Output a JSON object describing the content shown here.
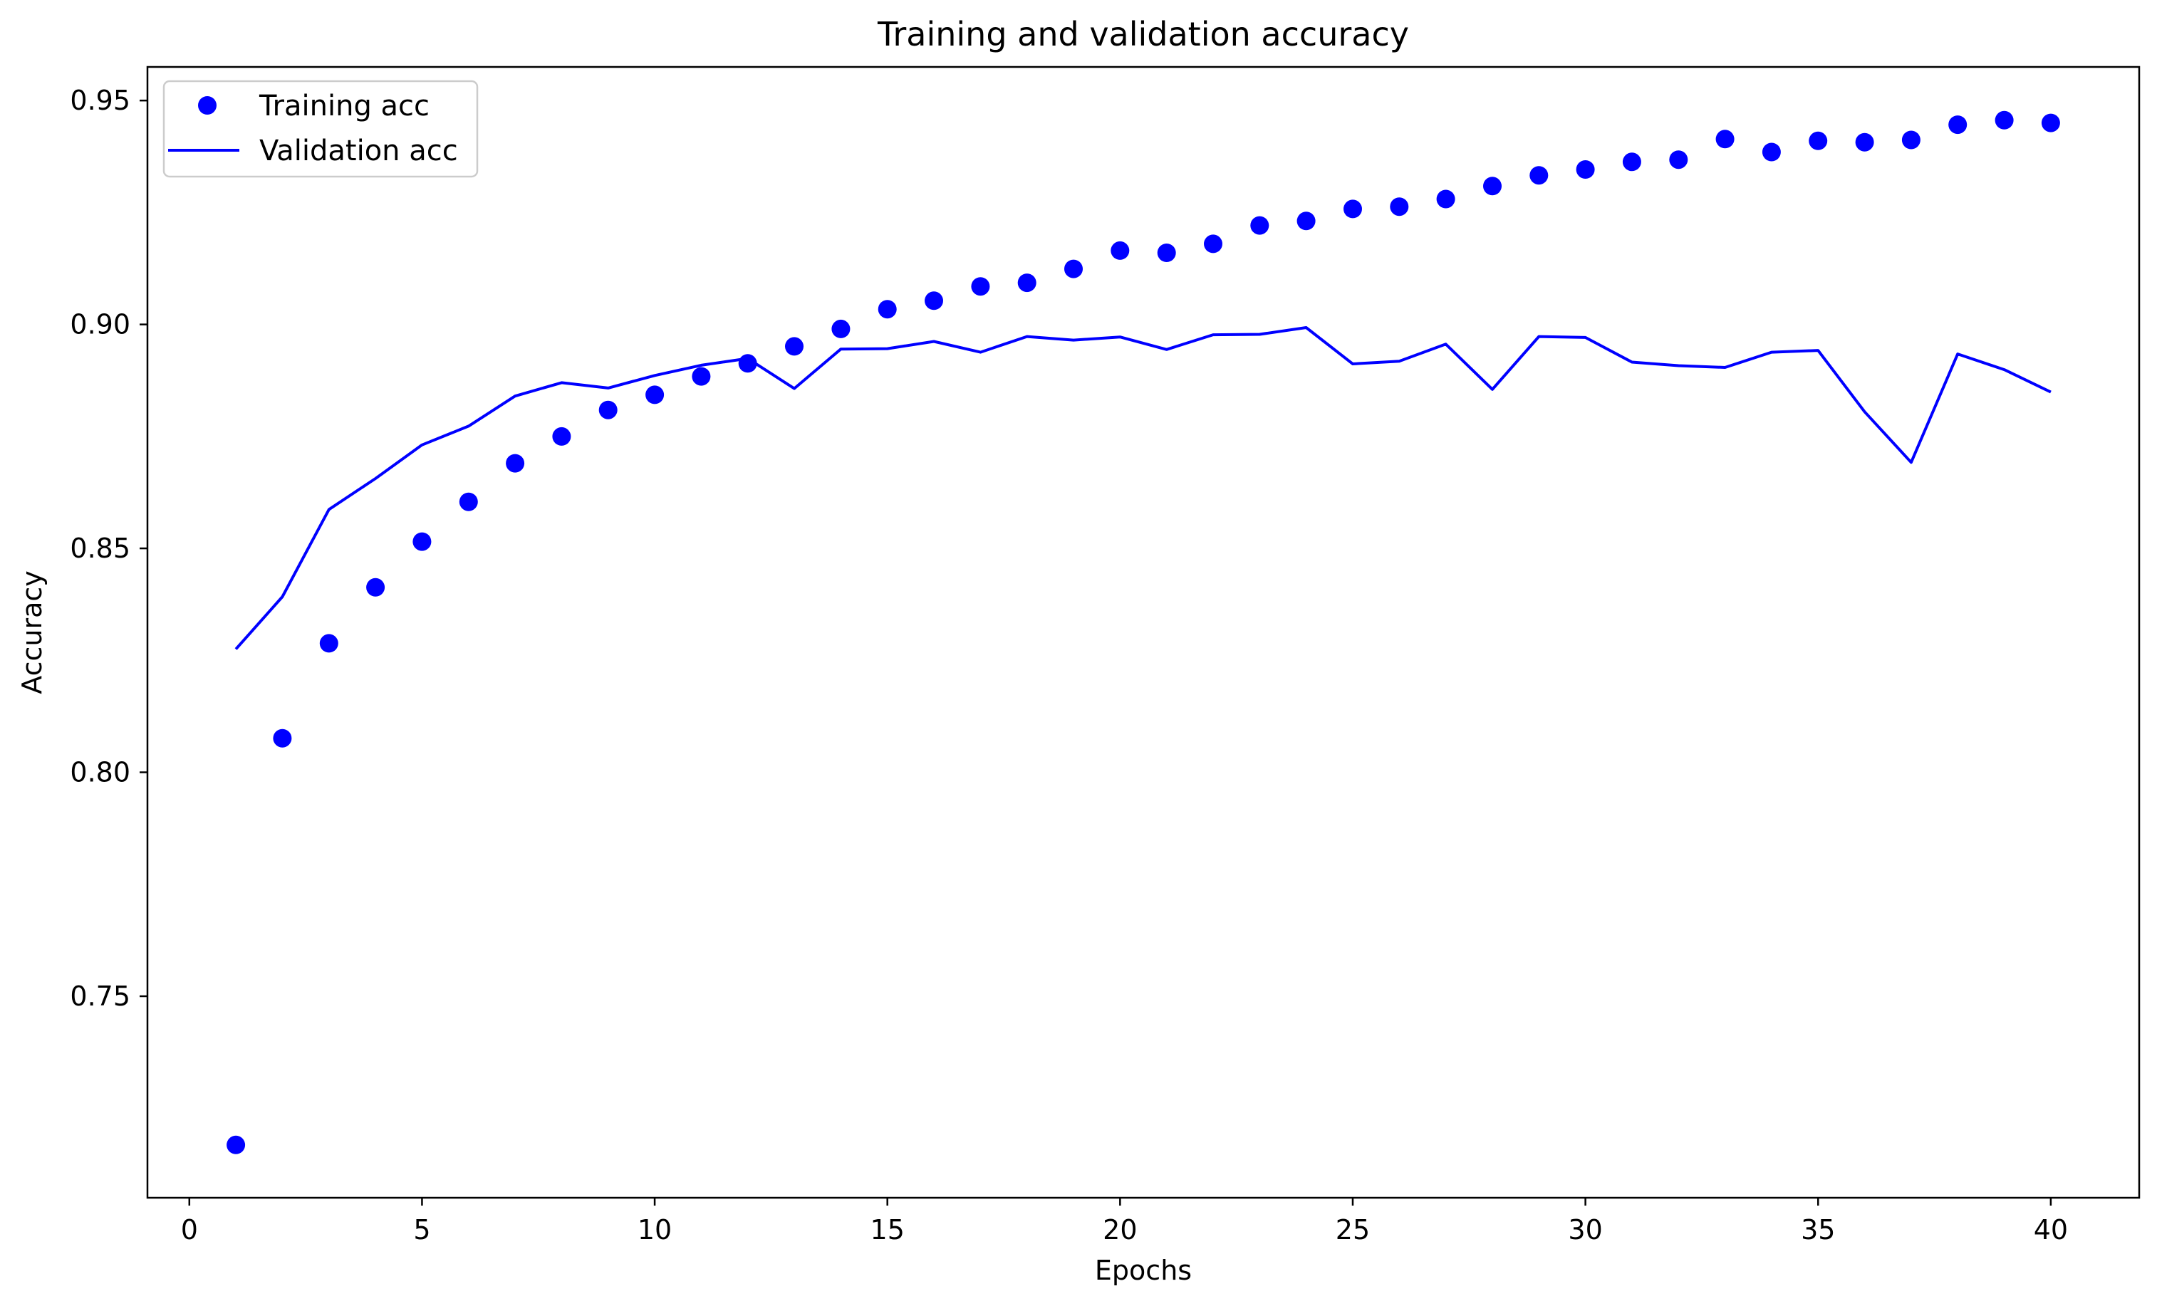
{
  "chart_data": {
    "type": "line",
    "title": "Training and validation accuracy",
    "xlabel": "Epochs",
    "ylabel": "Accuracy",
    "xlim": [
      -0.9,
      41.9
    ],
    "ylim": [
      0.705,
      0.9575
    ],
    "xticks": [
      0,
      5,
      10,
      15,
      20,
      25,
      30,
      35,
      40
    ],
    "yticks": [
      0.75,
      0.8,
      0.85,
      0.9,
      0.95
    ],
    "xtick_labels": [
      "0",
      "5",
      "10",
      "15",
      "20",
      "25",
      "30",
      "35",
      "40"
    ],
    "ytick_labels": [
      "0.75",
      "0.80",
      "0.85",
      "0.90",
      "0.95"
    ],
    "grid": false,
    "legend_position": "upper-left",
    "x": [
      1,
      2,
      3,
      4,
      5,
      6,
      7,
      8,
      9,
      10,
      11,
      12,
      13,
      14,
      15,
      16,
      17,
      18,
      19,
      20,
      21,
      22,
      23,
      24,
      25,
      26,
      27,
      28,
      29,
      30,
      31,
      32,
      33,
      34,
      35,
      36,
      37,
      38,
      39,
      40
    ],
    "series": [
      {
        "name": "Training acc",
        "style": "dots",
        "color": "#0000ff",
        "values": [
          0.7168,
          0.8076,
          0.8288,
          0.8413,
          0.8515,
          0.8604,
          0.869,
          0.875,
          0.8809,
          0.8843,
          0.8884,
          0.8913,
          0.8951,
          0.899,
          0.9034,
          0.9053,
          0.9085,
          0.9093,
          0.9124,
          0.9165,
          0.916,
          0.918,
          0.9221,
          0.9231,
          0.9258,
          0.9263,
          0.928,
          0.9309,
          0.9333,
          0.9346,
          0.9363,
          0.9368,
          0.9414,
          0.9385,
          0.941,
          0.9407,
          0.9412,
          0.9446,
          0.9456,
          0.945
        ]
      },
      {
        "name": "Validation acc",
        "style": "line",
        "color": "#0000ff",
        "values": [
          0.8275,
          0.8392,
          0.8587,
          0.8656,
          0.8731,
          0.8773,
          0.884,
          0.887,
          0.8858,
          0.8886,
          0.8909,
          0.8924,
          0.8857,
          0.8945,
          0.8946,
          0.8962,
          0.8938,
          0.8973,
          0.8965,
          0.8972,
          0.8944,
          0.8977,
          0.8978,
          0.8993,
          0.8912,
          0.8918,
          0.8956,
          0.8855,
          0.8973,
          0.8971,
          0.8916,
          0.8908,
          0.8904,
          0.8938,
          0.8942,
          0.8805,
          0.8692,
          0.8934,
          0.8899,
          0.8849
        ]
      }
    ]
  }
}
